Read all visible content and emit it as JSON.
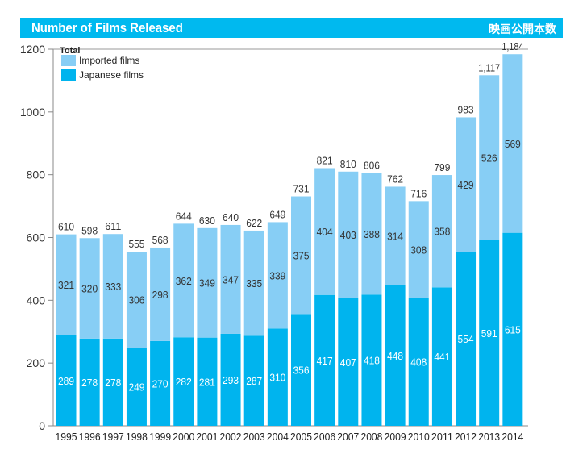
{
  "header": {
    "title": "Number of Films Released",
    "title_ja": "映画公開本数"
  },
  "colors": {
    "header": "#00b9ef",
    "imported": "#87cef5",
    "japanese": "#00b4ee"
  },
  "chart_data": {
    "type": "bar",
    "stacked": true,
    "title": "Number of Films Released",
    "categories": [
      "1995",
      "1996",
      "1997",
      "1998",
      "1999",
      "2000",
      "2001",
      "2002",
      "2003",
      "2004",
      "2005",
      "2006",
      "2007",
      "2008",
      "2009",
      "2010",
      "2011",
      "2012",
      "2013",
      "2014"
    ],
    "series": [
      {
        "name": "Japanese films",
        "values": [
          289,
          278,
          278,
          249,
          270,
          282,
          281,
          293,
          287,
          310,
          356,
          417,
          407,
          418,
          448,
          408,
          441,
          554,
          591,
          615
        ]
      },
      {
        "name": "Imported films",
        "values": [
          321,
          320,
          333,
          306,
          298,
          362,
          349,
          347,
          335,
          339,
          375,
          404,
          403,
          388,
          314,
          308,
          358,
          429,
          526,
          569
        ]
      }
    ],
    "totals_label": "Total",
    "totals": [
      "610",
      "598",
      "611",
      "555",
      "568",
      "644",
      "630",
      "640",
      "622",
      "649",
      "731",
      "821",
      "810",
      "806",
      "762",
      "716",
      "799",
      "983",
      "1,117",
      "1,184"
    ],
    "ylim": [
      0,
      1200
    ],
    "yticks": [
      "0",
      "200",
      "400",
      "600",
      "800",
      "1000",
      "1200"
    ],
    "legend": "top-left"
  }
}
